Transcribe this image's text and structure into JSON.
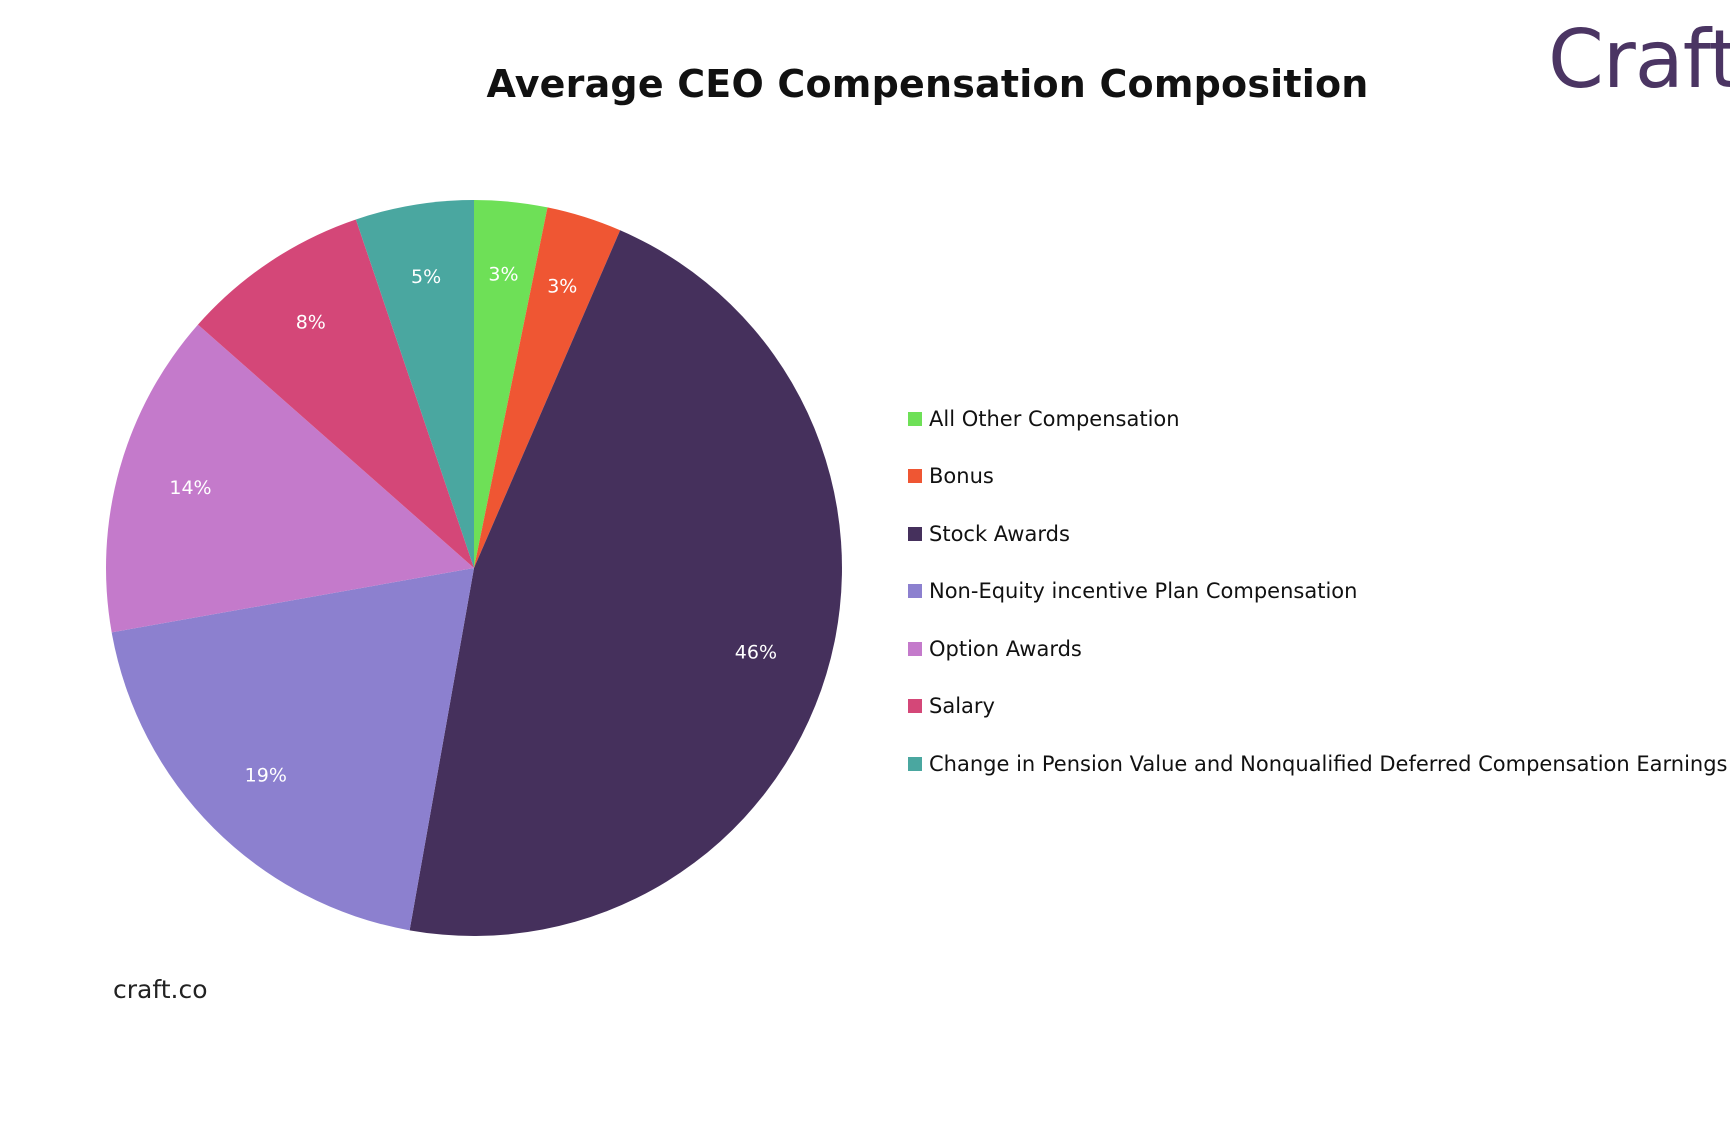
{
  "brand": {
    "logo_text": "Craft",
    "logo_color": "#4b3563"
  },
  "footer": {
    "source": "craft.co"
  },
  "chart_data": {
    "type": "pie",
    "title": "Average CEO Compensation Composition",
    "legend_position": "right",
    "slices": [
      {
        "label": "All Other Compensation",
        "value": 3.2,
        "display": "3%",
        "color": "#6ee057"
      },
      {
        "label": "Bonus",
        "value": 3.3,
        "display": "3%",
        "color": "#ef5633"
      },
      {
        "label": "Stock Awards",
        "value": 46.3,
        "display": "46%",
        "color": "#45305c"
      },
      {
        "label": "Non-Equity incentive Plan Compensation",
        "value": 19.4,
        "display": "19%",
        "color": "#8c80cf"
      },
      {
        "label": "Option Awards",
        "value": 14.3,
        "display": "14%",
        "color": "#c47acb"
      },
      {
        "label": "Salary",
        "value": 8.3,
        "display": "8%",
        "color": "#d44778"
      },
      {
        "label": "Change in Pension Value and Nonqualified Deferred Compensation Earnings",
        "value": 5.2,
        "display": "5%",
        "color": "#4aa7a0"
      }
    ]
  }
}
